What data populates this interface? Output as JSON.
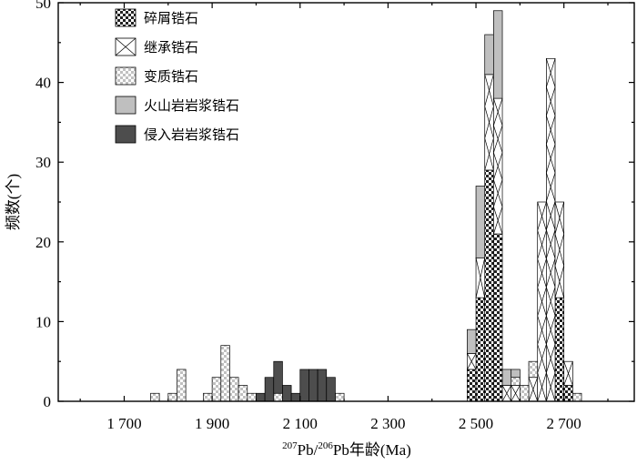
{
  "chart_data": {
    "type": "bar",
    "subtype": "stacked-histogram",
    "xlabel_prefix_sup1": "207",
    "xlabel_mid": "Pb/",
    "xlabel_prefix_sup2": "206",
    "xlabel_suffix": "Pb年龄(Ma)",
    "ylabel": "频数(个)",
    "xlim": [
      1550,
      2860
    ],
    "ylim": [
      0,
      50
    ],
    "bin_width": 20,
    "x_ticks": [
      1700,
      1900,
      2100,
      2300,
      2500,
      2700
    ],
    "x_tick_labels": [
      "1 700",
      "1 900",
      "2 100",
      "2 300",
      "2 500",
      "2 700"
    ],
    "y_ticks": [
      0,
      10,
      20,
      30,
      40,
      50
    ],
    "y_tick_labels": [
      "0",
      "10",
      "20",
      "30",
      "40",
      "50"
    ],
    "legend_position": "top-left",
    "series": [
      {
        "name": "碎屑锆石",
        "pattern": "checker-dark",
        "data": [
          [
            2480,
            4
          ],
          [
            2500,
            13
          ],
          [
            2520,
            29
          ],
          [
            2540,
            21
          ],
          [
            2680,
            13
          ],
          [
            2700,
            2
          ]
        ]
      },
      {
        "name": "继承锆石",
        "pattern": "cross",
        "data": [
          [
            2480,
            2
          ],
          [
            2500,
            5
          ],
          [
            2520,
            12
          ],
          [
            2540,
            17
          ],
          [
            2560,
            2
          ],
          [
            2580,
            2
          ],
          [
            2620,
            3
          ],
          [
            2640,
            25
          ],
          [
            2660,
            43
          ],
          [
            2680,
            12
          ],
          [
            2700,
            3
          ]
        ]
      },
      {
        "name": "变质锆石",
        "pattern": "checker-light",
        "data": [
          [
            1760,
            1
          ],
          [
            1800,
            1
          ],
          [
            1820,
            4
          ],
          [
            1880,
            1
          ],
          [
            1900,
            3
          ],
          [
            1920,
            7
          ],
          [
            1940,
            3
          ],
          [
            1960,
            2
          ],
          [
            1980,
            1
          ],
          [
            2040,
            1
          ],
          [
            2180,
            1
          ],
          [
            2580,
            1
          ],
          [
            2600,
            2
          ],
          [
            2620,
            2
          ],
          [
            2720,
            1
          ]
        ]
      },
      {
        "name": "火山岩岩浆锆石",
        "pattern": "light-gray",
        "data": [
          [
            2480,
            3
          ],
          [
            2500,
            9
          ],
          [
            2520,
            5
          ],
          [
            2540,
            11
          ],
          [
            2560,
            2
          ],
          [
            2580,
            1
          ]
        ]
      },
      {
        "name": "侵入岩岩浆锆石",
        "pattern": "dark-gray",
        "data": [
          [
            2000,
            1
          ],
          [
            2020,
            3
          ],
          [
            2040,
            4
          ],
          [
            2060,
            2
          ],
          [
            2080,
            1
          ],
          [
            2100,
            4
          ],
          [
            2120,
            4
          ],
          [
            2140,
            4
          ],
          [
            2160,
            3
          ]
        ]
      }
    ]
  },
  "colors": {
    "dark_gray": "#4d4d4d",
    "light_gray": "#bfbfbf",
    "checker_dark": "#222222",
    "checker_light": "#c8c8c8"
  }
}
